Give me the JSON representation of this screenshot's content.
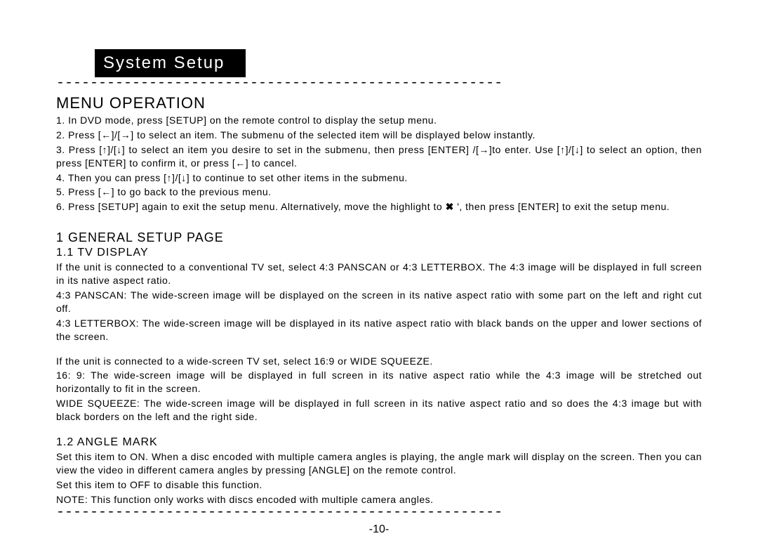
{
  "colors": {
    "page_bg": "#ffffff",
    "text": "#000000",
    "tab_bg": "#000000",
    "tab_text": "#ffffff",
    "side_accent": "#888888"
  },
  "title": "System Setup",
  "dash_rule": "-----------------------------------------------------",
  "menu_op": {
    "heading": "MENU OPERATION",
    "lines": [
      "1. In DVD mode, press [SETUP] on the remote control to display the setup menu.",
      "2. Press [←]/[→] to select an item. The submenu of the selected item will be displayed below instantly.",
      "3. Press [↑]/[↓] to select an item you desire to set in the submenu, then press [ENTER] /[→]to enter. Use [↑]/[↓] to select an option, then press [ENTER] to confirm it, or press [←] to cancel.",
      "4. Then you can press [↑]/[↓] to continue to set other items in the submenu.",
      "5. Press [←] to go back to the previous menu."
    ],
    "line6_a": "6. Press [SETUP] again to exit the setup menu. Alternatively, move the highlight to ",
    "line6_icon": "✖",
    "line6_b": " ', then press [ENTER] to exit the setup menu."
  },
  "general": {
    "heading": "1 GENERAL SETUP PAGE",
    "tv": {
      "heading": "1.1 TV DISPLAY",
      "p1": "If the unit is connected to a conventional TV set, select 4:3 PANSCAN or 4:3 LETTERBOX. The 4:3 image will be displayed in full screen in its native aspect ratio.",
      "p2": "4:3 PANSCAN: The wide-screen image will be displayed on the screen in its native aspect ratio with some part on the left and right cut off.",
      "p3": "4:3 LETTERBOX: The wide-screen image will be displayed in its native aspect ratio with black bands on the upper and lower sections of the screen.",
      "p4": "If the unit is connected to a wide-screen TV set, select 16:9 or WIDE SQUEEZE.",
      "p5": "16: 9: The wide-screen image will be displayed in full screen in its native aspect ratio while the 4:3 image will be stretched out horizontally to fit in the screen.",
      "p6": "WIDE SQUEEZE: The wide-screen image will be displayed in full screen in its native aspect ratio and so does the 4:3 image but with black borders on the left and the right side."
    },
    "angle": {
      "heading": "1.2 ANGLE MARK",
      "p1": "Set this item to ON. When a disc encoded with multiple camera angles is playing, the angle mark will display on the screen. Then you can view the video in different camera angles by pressing [ANGLE] on the remote control.",
      "p2": "Set this item to OFF to disable this function.",
      "p3": "NOTE: This function only works with discs encoded with multiple camera angles."
    }
  },
  "page_number": "-10-"
}
